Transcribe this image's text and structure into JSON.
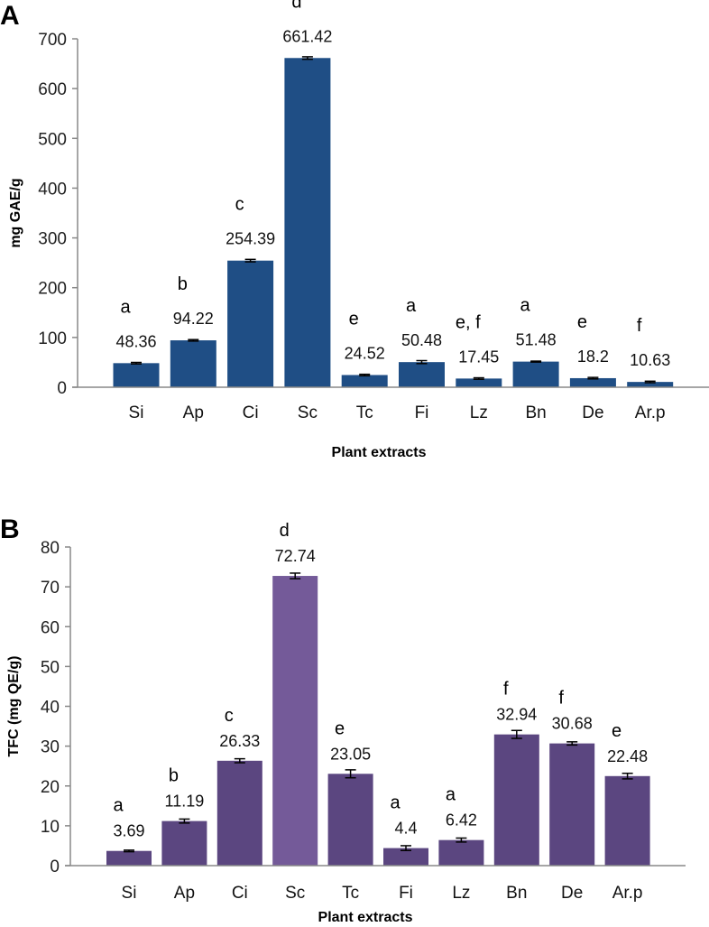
{
  "chart_data": [
    {
      "panel_label": "A",
      "type": "bar",
      "title": "",
      "xlabel": "Plant extracts",
      "ylabel": "mg GAE/g",
      "ylim": [
        0,
        700
      ],
      "yticks": [
        0,
        100,
        200,
        300,
        400,
        500,
        600,
        700
      ],
      "grid": false,
      "categories": [
        "Si",
        "Ap",
        "Ci",
        "Sc",
        "Tc",
        "Fi",
        "Lz",
        "Bn",
        "De",
        "Ar.p"
      ],
      "values": [
        48.36,
        94.22,
        254.39,
        661.42,
        24.52,
        50.48,
        17.45,
        51.48,
        18.2,
        10.63
      ],
      "value_labels": [
        "48.36",
        "94.22",
        "254.39",
        "661.42",
        "24.52",
        "50.48",
        "17.45",
        "51.48",
        "18.2",
        "10.63"
      ],
      "errors": [
        1.5,
        1.5,
        2.5,
        2.5,
        1.5,
        3,
        1.5,
        1,
        1.5,
        1.5
      ],
      "group_letters": [
        "a",
        "b",
        "c",
        "d",
        "e",
        "a",
        "e, f",
        "a",
        "e",
        "f"
      ],
      "color": "#1f4e85"
    },
    {
      "panel_label": "B",
      "type": "bar",
      "title": "",
      "xlabel": "Plant extracts",
      "ylabel": "TFC (mg QE/g)",
      "ylim": [
        0,
        80
      ],
      "yticks": [
        0,
        10,
        20,
        30,
        40,
        50,
        60,
        70,
        80
      ],
      "grid": false,
      "categories": [
        "Si",
        "Ap",
        "Ci",
        "Sc",
        "Tc",
        "Fi",
        "Lz",
        "Bn",
        "De",
        "Ar.p"
      ],
      "values": [
        3.69,
        11.19,
        26.33,
        72.74,
        23.05,
        4.4,
        6.42,
        32.94,
        30.68,
        22.48
      ],
      "value_labels": [
        "3.69",
        "11.19",
        "26.33",
        "72.74",
        "23.05",
        "4.4",
        "6.42",
        "32.94",
        "30.68",
        "22.48"
      ],
      "errors": [
        0.2,
        0.5,
        0.5,
        0.7,
        1.0,
        0.6,
        0.5,
        1.0,
        0.4,
        0.7
      ],
      "group_letters": [
        "a",
        "b",
        "c",
        "d",
        "e",
        "a",
        "a",
        "f",
        "f",
        "e"
      ],
      "color": "#5b4680",
      "highlight_color": "#745a99",
      "highlight_index": 3
    }
  ]
}
